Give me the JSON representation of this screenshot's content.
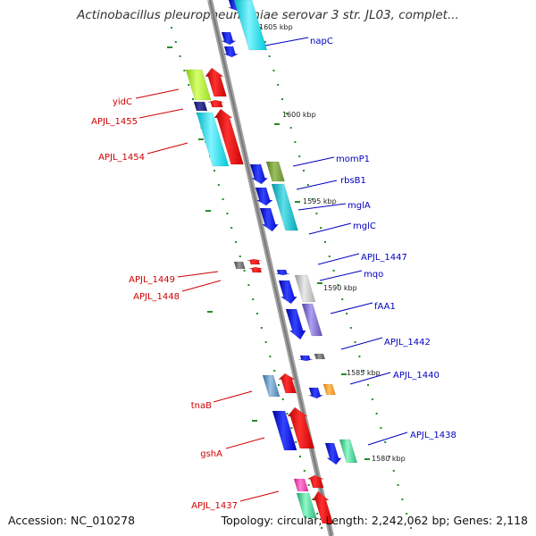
{
  "title": "Actinobacillus pleuropneumoniae serovar 3 str. JL03, complet...",
  "footer": {
    "accession": "Accession: NC_010278",
    "summary": "Topology: circular; Length: 2,242,062 bp; Genes: 2,118"
  },
  "kbp_marks": [
    {
      "label": "1605 kbp"
    },
    {
      "label": "1600 kbp"
    },
    {
      "label": "1595 kbp"
    },
    {
      "label": "1590 kbp"
    },
    {
      "label": "1585 kbp"
    },
    {
      "label": "1580 kbp"
    }
  ],
  "gene_labels": [
    {
      "name": "napC",
      "strand": "forward",
      "color": "#0000c0"
    },
    {
      "name": "yidC",
      "strand": "reverse",
      "color": "#d00000"
    },
    {
      "name": "APJL_1455",
      "strand": "reverse",
      "color": "#d00000"
    },
    {
      "name": "APJL_1454",
      "strand": "reverse",
      "color": "#d00000"
    },
    {
      "name": "momP1",
      "strand": "forward",
      "color": "#0000c0"
    },
    {
      "name": "rbsB1",
      "strand": "forward",
      "color": "#0000c0"
    },
    {
      "name": "mglA",
      "strand": "forward",
      "color": "#0000c0"
    },
    {
      "name": "mglC",
      "strand": "forward",
      "color": "#0000c0"
    },
    {
      "name": "APJL_1447",
      "strand": "forward",
      "color": "#0000c0"
    },
    {
      "name": "mqo",
      "strand": "forward",
      "color": "#0000c0"
    },
    {
      "name": "APJL_1449",
      "strand": "reverse",
      "color": "#d00000"
    },
    {
      "name": "APJL_1448",
      "strand": "reverse",
      "color": "#d00000"
    },
    {
      "name": "fAA1",
      "strand": "forward",
      "color": "#0000c0"
    },
    {
      "name": "APJL_1442",
      "strand": "forward",
      "color": "#0000c0"
    },
    {
      "name": "APJL_1440",
      "strand": "forward",
      "color": "#0000c0"
    },
    {
      "name": "tnaB",
      "strand": "reverse",
      "color": "#d00000"
    },
    {
      "name": "APJL_1438",
      "strand": "forward",
      "color": "#0000c0"
    },
    {
      "name": "gshA",
      "strand": "reverse",
      "color": "#d00000"
    },
    {
      "name": "APJL_1437",
      "strand": "reverse",
      "color": "#d00000"
    }
  ],
  "colors": {
    "forward_strand": "#0000ee",
    "reverse_strand": "#ee0000",
    "backbone": "#888888",
    "tick": "#2a8a2a"
  }
}
